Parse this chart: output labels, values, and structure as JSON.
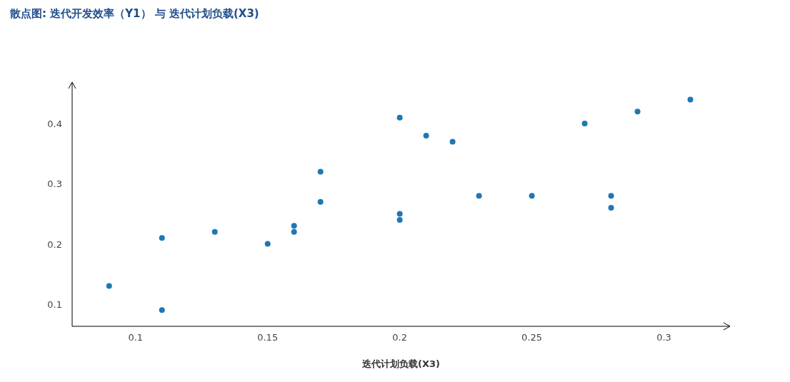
{
  "chart_data": {
    "type": "scatter",
    "title": "散点图: 迭代开发效率（Y1） 与 迭代计划负载(X3)",
    "xlabel": "迭代计划负载(X3)",
    "x": [
      0.09,
      0.11,
      0.11,
      0.13,
      0.15,
      0.16,
      0.16,
      0.17,
      0.17,
      0.2,
      0.2,
      0.2,
      0.21,
      0.22,
      0.23,
      0.25,
      0.27,
      0.28,
      0.28,
      0.29,
      0.31
    ],
    "series": [
      {
        "color": "#1f77b4",
        "values": [
          0.13,
          0.21,
          0.09,
          0.22,
          0.2,
          0.23,
          0.22,
          0.32,
          0.27,
          0.41,
          0.25,
          0.24,
          0.38,
          0.37,
          0.28,
          0.28,
          0.4,
          0.28,
          0.26,
          0.42,
          0.44
        ]
      }
    ],
    "xlim": [
      0.076,
      0.325
    ],
    "ylim": [
      0.063,
      0.469
    ],
    "xticks": [
      0.1,
      0.15,
      0.2,
      0.25,
      0.3
    ],
    "yticks": [
      0.1,
      0.2,
      0.3,
      0.4
    ],
    "grid": false,
    "marker": "circle"
  }
}
